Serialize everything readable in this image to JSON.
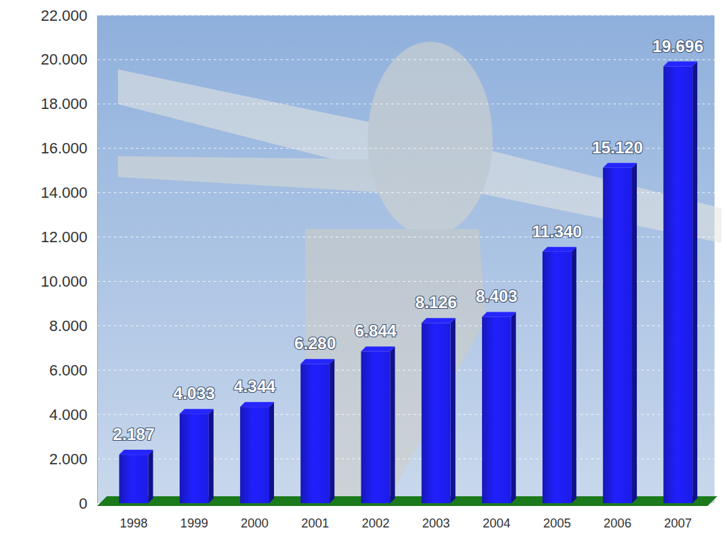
{
  "chart_data": {
    "type": "bar",
    "categories": [
      "1998",
      "1999",
      "2000",
      "2001",
      "2002",
      "2003",
      "2004",
      "2005",
      "2006",
      "2007"
    ],
    "values": [
      2187,
      4033,
      4344,
      6280,
      6844,
      8126,
      8403,
      11340,
      15120,
      19696
    ],
    "value_labels": [
      "2.187",
      "4.033",
      "4.344",
      "6.280",
      "6.844",
      "8.126",
      "8.403",
      "11.340",
      "15.120",
      "19.696"
    ],
    "color": "#1c1ce6",
    "ylim": [
      0,
      22000
    ],
    "yticks": [
      0,
      {
        "value": 2000,
        "label": "2.000"
      },
      {
        "value": 4000,
        "label": "4.000"
      },
      {
        "value": 6000,
        "label": "6.000"
      },
      {
        "value": 8000,
        "label": "8.000"
      },
      {
        "value": 10000,
        "label": "10.000"
      },
      {
        "value": 12000,
        "label": "12.000"
      },
      {
        "value": 14000,
        "label": "14.000"
      },
      {
        "value": 16000,
        "label": "16.000"
      },
      {
        "value": 18000,
        "label": "18.000"
      },
      {
        "value": 20000,
        "label": "20.000"
      },
      {
        "value": 22000,
        "label": "22.000"
      }
    ],
    "grid": true,
    "data_labels": true
  }
}
